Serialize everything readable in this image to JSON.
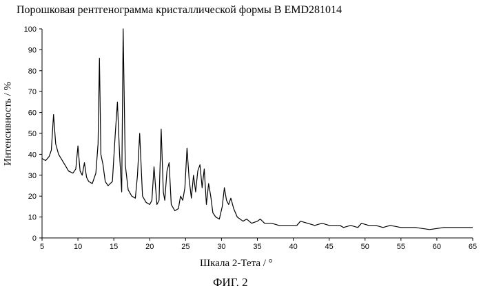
{
  "chart_data": {
    "type": "line",
    "title": "Порошковая рентгенограмма кристаллической формы В EMD281014",
    "xlabel": "Шкала 2-Тета / °",
    "ylabel": "Интенсивность / %",
    "caption": "ФИГ. 2",
    "xlim": [
      5,
      65
    ],
    "ylim": [
      0,
      100
    ],
    "xticks": [
      5,
      10,
      15,
      20,
      25,
      30,
      35,
      40,
      45,
      50,
      55,
      60,
      65
    ],
    "yticks": [
      0,
      10,
      20,
      30,
      40,
      50,
      60,
      70,
      80,
      90,
      100
    ],
    "grid": false,
    "series": [
      {
        "color": "#000000",
        "x": [
          5.0,
          5.5,
          6.0,
          6.3,
          6.6,
          6.9,
          7.3,
          8.0,
          8.7,
          9.3,
          9.7,
          10.0,
          10.3,
          10.6,
          10.9,
          11.2,
          11.5,
          12.0,
          12.5,
          12.8,
          13.0,
          13.2,
          13.5,
          13.8,
          14.2,
          14.8,
          15.2,
          15.5,
          15.8,
          16.1,
          16.3,
          16.6,
          17.0,
          17.5,
          18.0,
          18.3,
          18.6,
          19.0,
          19.5,
          20.0,
          20.3,
          20.6,
          21.0,
          21.3,
          21.6,
          21.9,
          22.1,
          22.4,
          22.7,
          23.0,
          23.5,
          24.0,
          24.3,
          24.6,
          24.9,
          25.2,
          25.5,
          25.8,
          26.1,
          26.4,
          26.7,
          27.0,
          27.3,
          27.6,
          27.9,
          28.2,
          28.5,
          28.8,
          29.2,
          29.7,
          30.1,
          30.4,
          30.7,
          31.0,
          31.3,
          31.7,
          32.2,
          33.0,
          33.5,
          34.2,
          35.0,
          35.4,
          36.0,
          37.0,
          38.0,
          39.0,
          40.5,
          41.0,
          42.0,
          43.0,
          44.0,
          45.0,
          46.5,
          47.0,
          48.0,
          49.0,
          49.5,
          50.5,
          51.5,
          52.5,
          53.5,
          55.0,
          57.0,
          59.0,
          61.0,
          63.0,
          65.0
        ],
        "y": [
          38,
          37,
          39,
          42,
          59,
          45,
          40,
          36,
          32,
          31,
          33,
          44,
          32,
          30,
          36,
          29,
          27,
          26,
          31,
          45,
          86,
          40,
          35,
          27,
          25,
          27,
          50,
          65,
          40,
          22,
          100,
          35,
          23,
          20,
          19,
          30,
          50,
          20,
          17,
          16,
          18,
          34,
          16,
          18,
          52,
          22,
          18,
          32,
          36,
          16,
          13,
          14,
          20,
          18,
          24,
          43,
          28,
          19,
          30,
          22,
          32,
          35,
          24,
          33,
          16,
          26,
          20,
          12,
          10,
          9,
          15,
          24,
          18,
          16,
          19,
          14,
          10,
          8,
          9,
          7,
          8,
          9,
          7,
          7,
          6,
          6,
          6,
          8,
          7,
          6,
          7,
          6,
          6,
          5,
          6,
          5,
          7,
          6,
          6,
          5,
          6,
          5,
          5,
          4,
          5,
          5,
          5
        ]
      }
    ]
  }
}
